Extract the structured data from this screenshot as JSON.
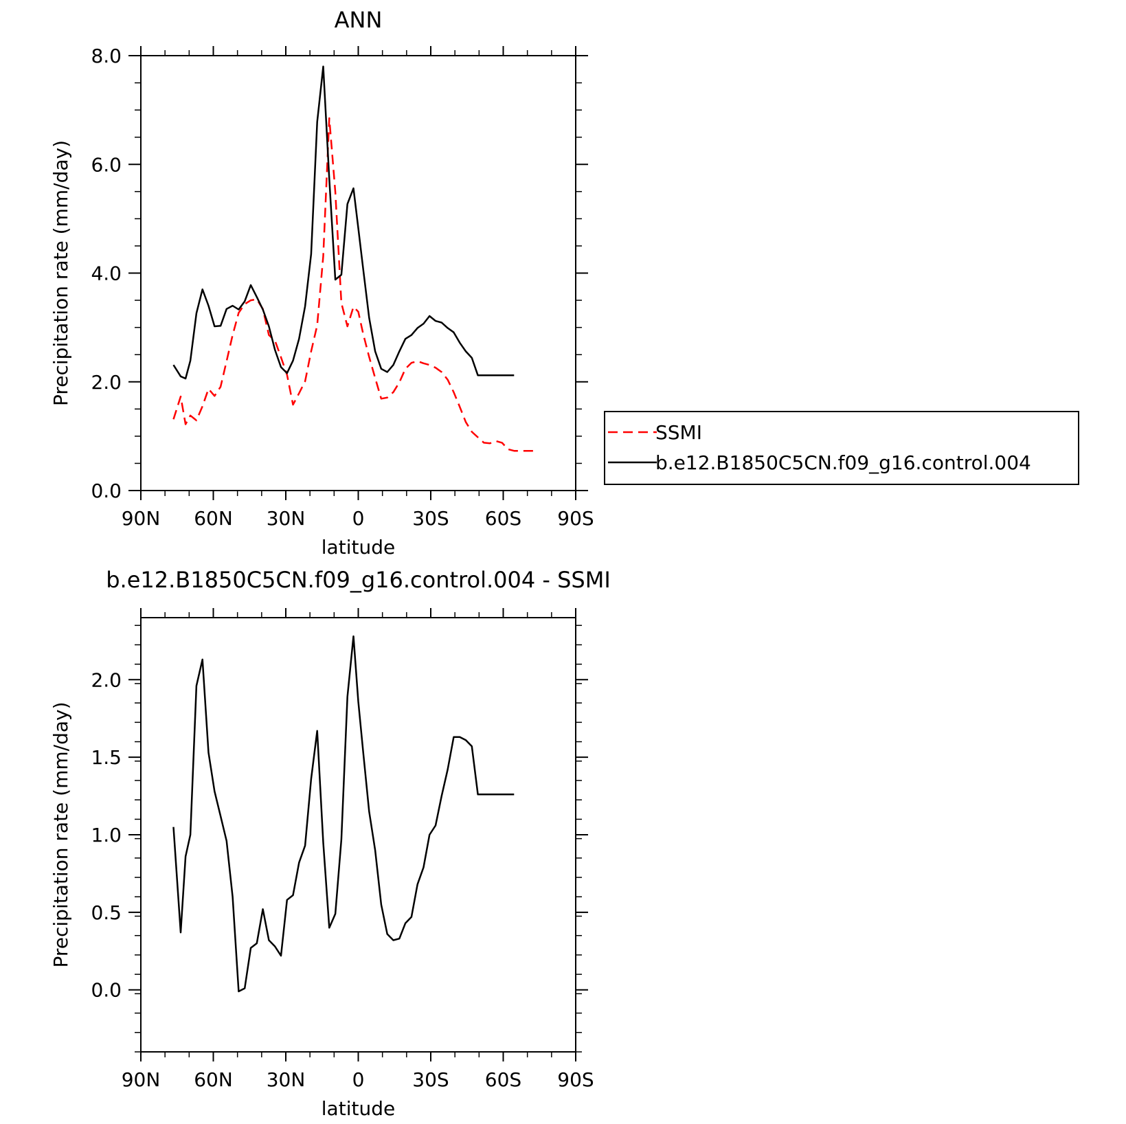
{
  "chart_data": [
    {
      "type": "line",
      "title": "ANN",
      "xlabel": "latitude",
      "ylabel": "Precipitation rate (mm/day)",
      "xlim": [
        90,
        -90
      ],
      "ylim": [
        0,
        8
      ],
      "xticks": [
        {
          "value": 90,
          "label": "90N"
        },
        {
          "value": 60,
          "label": "60N"
        },
        {
          "value": 30,
          "label": "30N"
        },
        {
          "value": 0,
          "label": "0"
        },
        {
          "value": -30,
          "label": "30S"
        },
        {
          "value": -60,
          "label": "60S"
        },
        {
          "value": -90,
          "label": "90S"
        }
      ],
      "yticks": [
        {
          "value": 0,
          "label": "0.0"
        },
        {
          "value": 2,
          "label": "2.0"
        },
        {
          "value": 4,
          "label": "4.0"
        },
        {
          "value": 6,
          "label": "6.0"
        },
        {
          "value": 8,
          "label": "8.0"
        }
      ],
      "grid": false,
      "legend_position": "right",
      "series": [
        {
          "name": "SSMI",
          "color": "#ff0000",
          "dash": true,
          "x": [
            76.5,
            73.5,
            71.5,
            69.5,
            67,
            64.5,
            62,
            59.5,
            57,
            54.5,
            52,
            49.5,
            47,
            44.5,
            42,
            39.5,
            37,
            34.5,
            32,
            29.5,
            27,
            24.5,
            22,
            19.5,
            17,
            14.5,
            12,
            9.5,
            7,
            4.5,
            2,
            0,
            -2,
            -4.5,
            -7,
            -9.5,
            -12,
            -14.5,
            -17,
            -19.5,
            -22,
            -24.5,
            -27,
            -29.5,
            -32,
            -34.5,
            -37,
            -39.5,
            -42,
            -44.5,
            -47,
            -49.5,
            -52,
            -54.5,
            -57,
            -59.5,
            -62,
            -64.5,
            -67,
            -69.5,
            -72,
            -74.5
          ],
          "y": [
            1.31,
            1.73,
            1.22,
            1.38,
            1.29,
            1.55,
            1.87,
            1.74,
            1.91,
            2.38,
            2.86,
            3.27,
            3.43,
            3.5,
            3.52,
            3.34,
            2.86,
            2.76,
            2.45,
            2.13,
            1.58,
            1.79,
            2.01,
            2.56,
            3.04,
            4.31,
            6.85,
            5.49,
            3.45,
            3.02,
            3.38,
            3.29,
            2.89,
            2.46,
            2.07,
            1.69,
            1.71,
            1.81,
            1.99,
            2.24,
            2.35,
            2.38,
            2.34,
            2.31,
            2.26,
            2.18,
            2.04,
            1.81,
            1.54,
            1.26,
            1.08,
            0.98,
            0.88,
            0.87,
            0.91,
            0.88,
            0.76,
            0.73,
            0.73,
            0.73,
            0.73,
            0.73
          ]
        },
        {
          "name": "b.e12.B1850C5CN.f09_g16.control.004",
          "color": "#000000",
          "dash": false,
          "x": [
            76.5,
            73.5,
            71.5,
            69.5,
            67,
            64.5,
            62,
            59.5,
            57,
            54.5,
            52,
            49.5,
            47,
            44.5,
            42,
            39.5,
            37,
            34.5,
            32,
            29.5,
            27,
            24.5,
            22,
            19.5,
            17,
            14.5,
            12,
            9.5,
            7,
            4.5,
            2,
            0,
            -2,
            -4.5,
            -7,
            -9.5,
            -12,
            -14.5,
            -17,
            -19.5,
            -22,
            -24.5,
            -27,
            -29.5,
            -32,
            -34.5,
            -37,
            -39.5,
            -42,
            -44.5,
            -47,
            -49.5,
            -52,
            -54.5,
            -57,
            -59.5,
            -62,
            -64.5
          ],
          "y": [
            2.31,
            2.1,
            2.06,
            2.39,
            3.26,
            3.7,
            3.4,
            3.02,
            3.03,
            3.34,
            3.4,
            3.33,
            3.48,
            3.78,
            3.56,
            3.33,
            3.02,
            2.59,
            2.27,
            2.16,
            2.39,
            2.79,
            3.39,
            4.35,
            6.78,
            7.8,
            5.73,
            3.88,
            3.97,
            5.27,
            5.56,
            4.83,
            4.09,
            3.18,
            2.56,
            2.24,
            2.18,
            2.31,
            2.56,
            2.79,
            2.86,
            2.99,
            3.07,
            3.21,
            3.12,
            3.09,
            2.99,
            2.91,
            2.72,
            2.56,
            2.44,
            2.12,
            2.12,
            2.12,
            2.12,
            2.12,
            2.12,
            2.12
          ]
        }
      ]
    },
    {
      "type": "line",
      "title": "b.e12.B1850C5CN.f09_g16.control.004 - SSMI",
      "xlabel": "latitude",
      "ylabel": "Precipitation rate (mm/day)",
      "xlim": [
        90,
        -90
      ],
      "ylim": [
        -0.4,
        2.4
      ],
      "xticks": [
        {
          "value": 90,
          "label": "90N"
        },
        {
          "value": 60,
          "label": "60N"
        },
        {
          "value": 30,
          "label": "30N"
        },
        {
          "value": 0,
          "label": "0"
        },
        {
          "value": -30,
          "label": "30S"
        },
        {
          "value": -60,
          "label": "60S"
        },
        {
          "value": -90,
          "label": "90S"
        }
      ],
      "yticks": [
        {
          "value": 0,
          "label": "0.0"
        },
        {
          "value": 0.5,
          "label": "0.5"
        },
        {
          "value": 1,
          "label": "1.0"
        },
        {
          "value": 1.5,
          "label": "1.5"
        },
        {
          "value": 2,
          "label": "2.0"
        }
      ],
      "grid": false,
      "series": [
        {
          "color": "#000000",
          "dash": false,
          "x": [
            76.5,
            73.5,
            71.5,
            69.5,
            67,
            64.5,
            62,
            59.5,
            57,
            54.5,
            52,
            49.5,
            47,
            44.5,
            42,
            39.5,
            37,
            34.5,
            32,
            29.5,
            27,
            24.5,
            22,
            19.5,
            17,
            14.5,
            12,
            9.5,
            7,
            4.5,
            2,
            0,
            -2,
            -4.5,
            -7,
            -9.5,
            -12,
            -14.5,
            -17,
            -19.5,
            -22,
            -24.5,
            -27,
            -29.5,
            -32,
            -34.5,
            -37,
            -39.5,
            -42,
            -44.5,
            -47,
            -49.5,
            -52,
            -54.5,
            -57,
            -59.5,
            -62,
            -64.5
          ],
          "y": [
            1.05,
            0.37,
            0.86,
            1.0,
            1.96,
            2.13,
            1.53,
            1.28,
            1.12,
            0.96,
            0.6,
            -0.01,
            0.01,
            0.27,
            0.3,
            0.52,
            0.32,
            0.28,
            0.22,
            0.58,
            0.61,
            0.82,
            0.93,
            1.36,
            1.67,
            0.95,
            0.4,
            0.49,
            0.97,
            1.89,
            2.28,
            1.86,
            1.54,
            1.15,
            0.9,
            0.55,
            0.36,
            0.32,
            0.33,
            0.43,
            0.47,
            0.68,
            0.79,
            1.0,
            1.06,
            1.25,
            1.42,
            1.63,
            1.63,
            1.61,
            1.57,
            1.26,
            1.26,
            1.26,
            1.26,
            1.26,
            1.26,
            1.26
          ]
        }
      ]
    }
  ]
}
